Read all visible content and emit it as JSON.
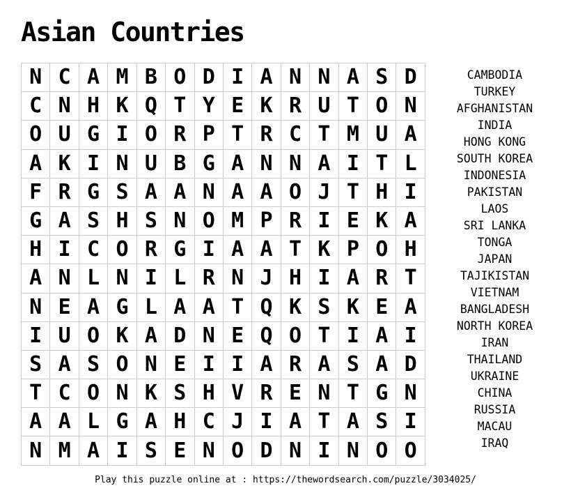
{
  "title": "Asian Countries",
  "grid": {
    "rows": [
      "NCAMBODIANNASD",
      "CNHKQTYEKRUTON",
      "OUGIORPTRCTMUA",
      "AKINUBGANNAITL",
      "FRGSAANAAOJTHI",
      "GASHSNOMPRIEKA",
      "HICORGIAATKPOH",
      "ANLNILRNJHIART",
      "NEAGLAATQKSKEA",
      "IUOKADNEQOTIAI",
      "SASONEIIARASAD",
      "TCONKSHVRENTGN",
      "AALGAHCJIATASI",
      "NMAISENODNINOO"
    ]
  },
  "word_list": [
    "CAMBODIA",
    "TURKEY",
    "AFGHANISTAN",
    "INDIA",
    "HONG KONG",
    "SOUTH KOREA",
    "INDONESIA",
    "PAKISTAN",
    "LAOS",
    "SRI LANKA",
    "TONGA",
    "JAPAN",
    "TAJIKISTAN",
    "VIETNAM",
    "BANGLADESH",
    "NORTH KOREA",
    "IRAN",
    "THAILAND",
    "UKRAINE",
    "CHINA",
    "RUSSIA",
    "MACAU",
    "IRAQ"
  ],
  "footer": {
    "text": "Play this puzzle online at : https://thewordsearch.com/puzzle/3034025/"
  },
  "colors": {
    "background": "#ffffff",
    "text": "#000000",
    "grid_border": "#cccccc"
  }
}
